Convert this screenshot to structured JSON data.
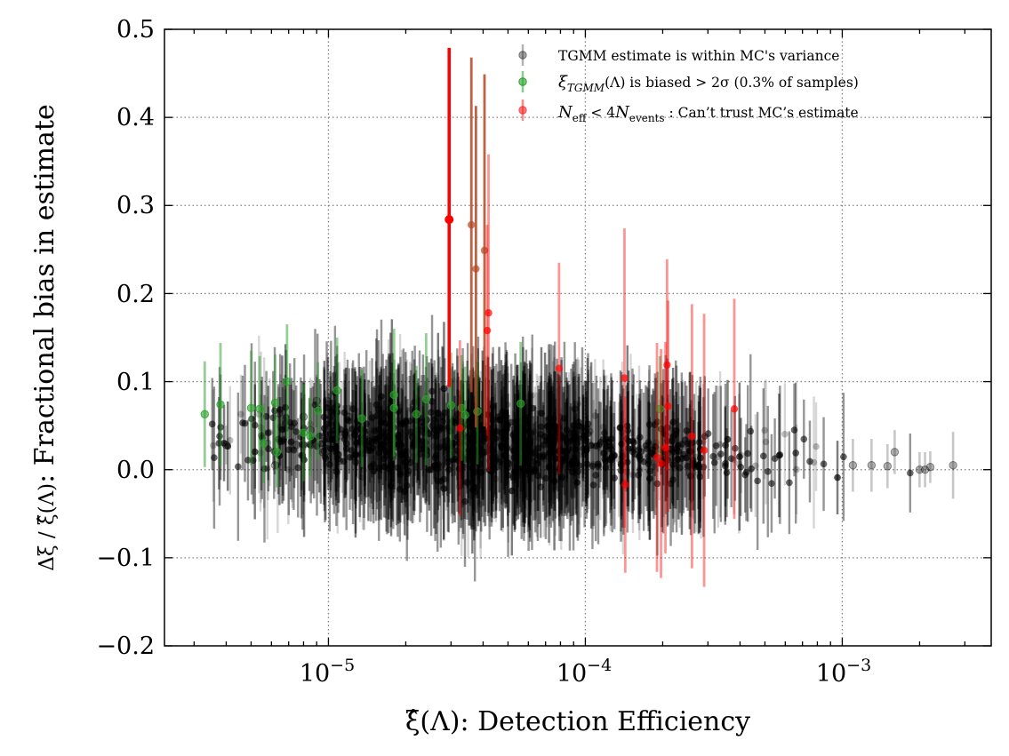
{
  "chart_data": {
    "type": "scatter",
    "title": "",
    "xlabel": "ξ̂(Λ): Detection Efficiency",
    "ylabel": "Δξ / ξ̂(Λ): Fractional bias in estimate",
    "ylabel_prefix": "Δξ / ξ̂(Λ)",
    "ylabel_text": ": Fractional bias in estimate",
    "xscale": "log",
    "xlim": [
      2.3e-06,
      0.0038
    ],
    "ylim": [
      -0.2,
      0.5
    ],
    "grid": true,
    "legend_position": "top-right",
    "x_ticks": [
      {
        "value": 1e-05,
        "base": "10",
        "exp": "−5"
      },
      {
        "value": 0.0001,
        "base": "10",
        "exp": "−4"
      },
      {
        "value": 0.001,
        "base": "10",
        "exp": "−3"
      }
    ],
    "y_ticks": [
      {
        "value": -0.2,
        "label": "−0.2"
      },
      {
        "value": -0.1,
        "label": "−0.1"
      },
      {
        "value": 0.0,
        "label": "0.0"
      },
      {
        "value": 0.1,
        "label": "0.1"
      },
      {
        "value": 0.2,
        "label": "0.2"
      },
      {
        "value": 0.3,
        "label": "0.3"
      },
      {
        "value": 0.4,
        "label": "0.4"
      },
      {
        "value": 0.5,
        "label": "0.5"
      }
    ],
    "series": [
      {
        "name": "TGMM estimate is within MC's variance",
        "color": "#000000",
        "note": "dense cloud of samples, center ~0.01–0.03 at x 1e-5..1e-3",
        "points": [
          [
            4e-06,
            0.028,
            0.022
          ],
          [
            6.2e-06,
            0.005,
            0.03
          ],
          [
            6.4e-06,
            0.064,
            0.03
          ],
          [
            7.5e-06,
            0.028,
            0.025
          ],
          [
            8e-06,
            0.06,
            0.03
          ],
          [
            8.5e-06,
            0.045,
            0.03
          ],
          [
            9e-06,
            0.078,
            0.03
          ],
          [
            9.5e-06,
            0.02,
            0.025
          ],
          [
            1.02e-05,
            0.05,
            0.04
          ],
          [
            1.1e-05,
            0.01,
            0.03
          ],
          [
            1.2e-05,
            0.06,
            0.04
          ],
          [
            1.3e-05,
            0.03,
            0.04
          ],
          [
            0.002,
            0.0,
            0.02
          ],
          [
            0.0021,
            0.0,
            0.02
          ],
          [
            0.0022,
            0.003,
            0.018
          ],
          [
            0.0027,
            0.005,
            0.038
          ],
          [
            0.0013,
            0.005,
            0.03
          ],
          [
            0.0015,
            0.004,
            0.025
          ],
          [
            0.0011,
            0.005,
            0.03
          ],
          [
            0.0016,
            0.02,
            0.025
          ]
        ]
      },
      {
        "name": "ξTGMM(Λ) is biased > 2σ (0.3% of samples)",
        "label_xi": "ξ",
        "label_sub": "TGMM",
        "label_rest": "(Λ) is biased > 2σ (0.3% of samples)",
        "color": "#2ca02c",
        "points": [
          [
            3.3e-06,
            0.063,
            0.06
          ],
          [
            3.8e-06,
            0.074,
            0.07
          ],
          [
            5e-06,
            0.07,
            0.065
          ],
          [
            5.4e-06,
            0.069,
            0.06
          ],
          [
            5.6e-06,
            0.03,
            0.045
          ],
          [
            6.2e-06,
            0.076,
            0.055
          ],
          [
            6.3e-06,
            0.02,
            0.04
          ],
          [
            6.9e-06,
            0.1,
            0.065
          ],
          [
            8e-06,
            0.042,
            0.055
          ],
          [
            8.5e-06,
            0.038,
            0.045
          ],
          [
            9.1e-06,
            0.067,
            0.055
          ],
          [
            1.08e-05,
            0.09,
            0.06
          ],
          [
            1.35e-05,
            0.058,
            0.055
          ],
          [
            1.8e-05,
            0.085,
            0.075
          ],
          [
            2.2e-05,
            0.063,
            0.055
          ],
          [
            2.4e-05,
            0.08,
            0.075
          ],
          [
            3e-05,
            0.073,
            0.06
          ],
          [
            3.3e-05,
            0.07,
            0.06
          ],
          [
            3.4e-05,
            0.062,
            0.055
          ],
          [
            3.8e-05,
            0.066,
            0.06
          ],
          [
            5.6e-05,
            0.075,
            0.07
          ],
          [
            0.000195,
            0.069,
            0.06
          ],
          [
            1.8e-05,
            0.07,
            0.055
          ]
        ]
      },
      {
        "name": "N_eff < 4 N_events : Can't trust MC's estimate",
        "label_n": "N",
        "label_eff": "eff",
        "label_mid": " < 4",
        "label_events": "events",
        "label_rest": " : Can’t trust MC’s estimate",
        "color": "#ff0000",
        "points": [
          [
            2.95e-05,
            0.284,
            0.195,
            0.19
          ],
          [
            3.6e-05,
            0.278,
            0.19,
            0.19
          ],
          [
            3.75e-05,
            0.228,
            0.185,
            0.18
          ],
          [
            4.05e-05,
            0.249,
            0.2,
            0.2
          ],
          [
            4.15e-05,
            0.158,
            0.12,
            0.12
          ],
          [
            4.2e-05,
            0.178,
            0.18,
            0.18
          ],
          [
            3.25e-05,
            0.047,
            0.1,
            0.1
          ],
          [
            7.9e-05,
            0.115,
            0.12,
            0.12
          ],
          [
            0.000142,
            0.104,
            0.17,
            0.17
          ],
          [
            0.000143,
            -0.017,
            0.1,
            0.1
          ],
          [
            0.00019,
            0.014,
            0.13,
            0.13
          ],
          [
            0.000197,
            0.007,
            0.13,
            0.13
          ],
          [
            0.000205,
            0.025,
            0.12,
            0.12
          ],
          [
            0.000208,
            0.119,
            0.12,
            0.12
          ],
          [
            0.00021,
            0.072,
            0.12,
            0.12
          ],
          [
            0.00026,
            0.038,
            0.15,
            0.15
          ],
          [
            0.00029,
            0.022,
            0.155,
            0.155
          ],
          [
            0.00038,
            0.069,
            0.125,
            0.125
          ]
        ]
      }
    ]
  }
}
